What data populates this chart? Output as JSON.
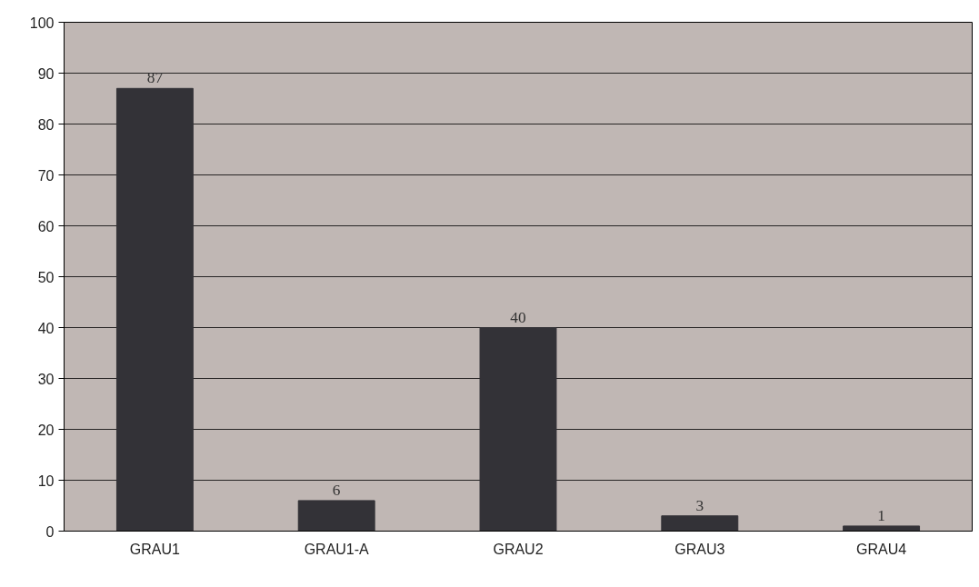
{
  "chart_data": {
    "type": "bar",
    "categories": [
      "GRAU1",
      "GRAU1-A",
      "GRAU2",
      "GRAU3",
      "GRAU4"
    ],
    "values": [
      87,
      6,
      40,
      3,
      1
    ],
    "color": "#333237",
    "ylim": [
      0,
      100
    ],
    "yticks": [
      0,
      10,
      20,
      30,
      40,
      50,
      60,
      70,
      80,
      90,
      100
    ],
    "grid": "y",
    "data_labels": true
  }
}
